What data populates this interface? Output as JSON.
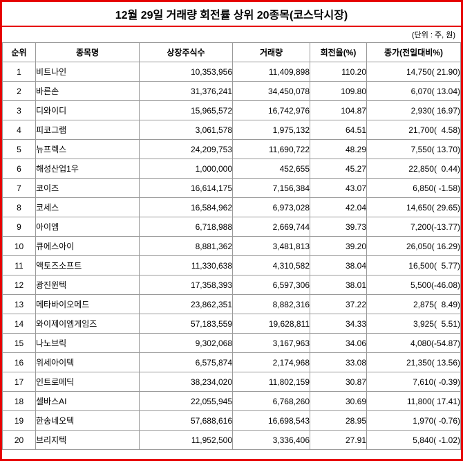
{
  "page": {
    "title": "12월 29일 거래량 회전률 상위 20종목(코스닥시장)",
    "unit_note": "(단위 : 주, 원)"
  },
  "chart_data": {
    "type": "table",
    "title": "12월 29일 거래량 회전률 상위 20종목(코스닥시장)",
    "unit": "주, 원",
    "columns": [
      "순위",
      "종목명",
      "상장주식수",
      "거래량",
      "회전율(%)",
      "종가(전일대비%)"
    ],
    "rows": [
      [
        "1",
        "비트나인",
        "10,353,956",
        "11,409,898",
        "110.20",
        "14,750( 21.90)"
      ],
      [
        "2",
        "바른손",
        "31,376,241",
        "34,450,078",
        "109.80",
        "6,070( 13.04)"
      ],
      [
        "3",
        "디와이디",
        "15,965,572",
        "16,742,976",
        "104.87",
        "2,930( 16.97)"
      ],
      [
        "4",
        "피코그램",
        "3,061,578",
        "1,975,132",
        "64.51",
        "21,700(  4.58)"
      ],
      [
        "5",
        "뉴프렉스",
        "24,209,753",
        "11,690,722",
        "48.29",
        "7,550( 13.70)"
      ],
      [
        "6",
        "해성산업1우",
        "1,000,000",
        "452,655",
        "45.27",
        "22,850(  0.44)"
      ],
      [
        "7",
        "코이즈",
        "16,614,175",
        "7,156,384",
        "43.07",
        "6,850( -1.58)"
      ],
      [
        "8",
        "코세스",
        "16,584,962",
        "6,973,028",
        "42.04",
        "14,650( 29.65)"
      ],
      [
        "9",
        "아이엠",
        "6,718,988",
        "2,669,744",
        "39.73",
        "7,200(-13.77)"
      ],
      [
        "10",
        "큐에스아이",
        "8,881,362",
        "3,481,813",
        "39.20",
        "26,050( 16.29)"
      ],
      [
        "11",
        "액토즈소프트",
        "11,330,638",
        "4,310,582",
        "38.04",
        "16,500(  5.77)"
      ],
      [
        "12",
        "광진윈텍",
        "17,358,393",
        "6,597,306",
        "38.01",
        "5,500(-46.08)"
      ],
      [
        "13",
        "메타바이오메드",
        "23,862,351",
        "8,882,316",
        "37.22",
        "2,875(  8.49)"
      ],
      [
        "14",
        "와이제이엠게임즈",
        "57,183,559",
        "19,628,811",
        "34.33",
        "3,925(  5.51)"
      ],
      [
        "15",
        "나노브릭",
        "9,302,068",
        "3,167,963",
        "34.06",
        "4,080(-54.87)"
      ],
      [
        "16",
        "위세아이텍",
        "6,575,874",
        "2,174,968",
        "33.08",
        "21,350( 13.56)"
      ],
      [
        "17",
        "인트로메딕",
        "38,234,020",
        "11,802,159",
        "30.87",
        "7,610( -0.39)"
      ],
      [
        "18",
        "셀바스AI",
        "22,055,945",
        "6,768,260",
        "30.69",
        "11,800( 17.41)"
      ],
      [
        "19",
        "한송네오텍",
        "57,688,616",
        "16,698,543",
        "28.95",
        "1,970( -0.76)"
      ],
      [
        "20",
        "브리지텍",
        "11,952,500",
        "3,336,406",
        "27.91",
        "5,840( -1.02)"
      ]
    ]
  }
}
